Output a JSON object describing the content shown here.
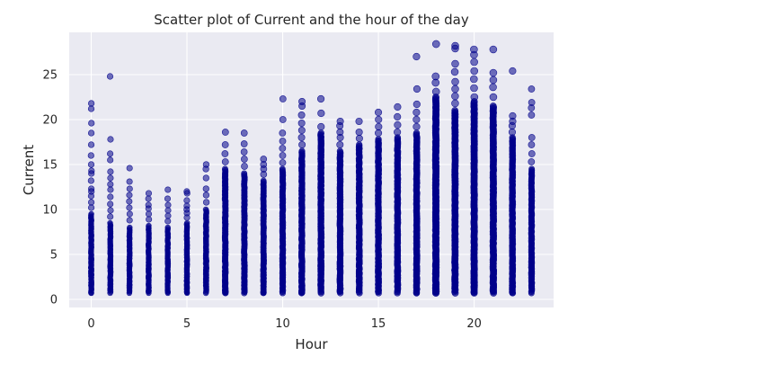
{
  "chart_data": {
    "type": "scatter",
    "title": "Scatter plot of Current and the hour of the day",
    "xlabel": "Hour",
    "ylabel": "Current",
    "xlim": [
      -1.15,
      24.15
    ],
    "ylim": [
      -0.9,
      29.7
    ],
    "xticks": [
      0,
      5,
      10,
      15,
      20
    ],
    "yticks": [
      0,
      5,
      10,
      15,
      20,
      25
    ],
    "grid": true,
    "legend": "none",
    "colors": {
      "point": "#00008b",
      "background": "#eaeaf2",
      "grid": "#ffffff",
      "text": "#262626"
    },
    "series": [
      {
        "name": "Current",
        "points": [
          {
            "hour": 0,
            "low": 0.7,
            "dense_max": 9.5,
            "outliers": [
              10.2,
              10.8,
              11.5,
              12.0,
              12.3,
              13.2,
              14.0,
              14.3,
              15.0,
              16.0,
              17.2,
              18.5,
              19.6,
              21.2,
              21.8
            ]
          },
          {
            "hour": 1,
            "low": 0.7,
            "dense_max": 8.5,
            "outliers": [
              9.2,
              9.9,
              10.6,
              11.4,
              12.2,
              12.8,
              13.5,
              14.2,
              15.5,
              16.2,
              17.8,
              24.8
            ]
          },
          {
            "hour": 2,
            "low": 0.7,
            "dense_max": 8.0,
            "outliers": [
              8.8,
              9.5,
              10.2,
              10.9,
              11.6,
              12.3,
              13.1,
              14.6
            ]
          },
          {
            "hour": 3,
            "low": 0.7,
            "dense_max": 8.2,
            "outliers": [
              8.9,
              9.5,
              10.1,
              10.5,
              11.2,
              11.8
            ]
          },
          {
            "hour": 4,
            "low": 0.7,
            "dense_max": 8.0,
            "outliers": [
              8.7,
              9.3,
              9.9,
              10.5,
              11.2,
              12.2
            ]
          },
          {
            "hour": 5,
            "low": 0.7,
            "dense_max": 8.5,
            "outliers": [
              9.1,
              9.6,
              10.0,
              10.4,
              11.0,
              11.8,
              12.0
            ]
          },
          {
            "hour": 6,
            "low": 0.7,
            "dense_max": 10.0,
            "outliers": [
              10.8,
              11.6,
              12.3,
              13.5,
              14.5,
              15.0
            ]
          },
          {
            "hour": 7,
            "low": 0.7,
            "dense_max": 14.5,
            "outliers": [
              15.3,
              16.2,
              17.2,
              18.6
            ]
          },
          {
            "hour": 8,
            "low": 0.7,
            "dense_max": 14.0,
            "outliers": [
              14.8,
              15.6,
              16.4,
              17.3,
              18.5
            ]
          },
          {
            "hour": 9,
            "low": 0.7,
            "dense_max": 13.2,
            "outliers": [
              13.9,
              14.5,
              15.0,
              15.6
            ]
          },
          {
            "hour": 10,
            "low": 0.7,
            "dense_max": 14.5,
            "outliers": [
              15.2,
              16.0,
              16.8,
              17.6,
              18.5,
              20.0,
              22.3
            ]
          },
          {
            "hour": 11,
            "low": 0.7,
            "dense_max": 16.5,
            "outliers": [
              17.2,
              18.0,
              18.8,
              19.6,
              20.5,
              21.5,
              22.0
            ]
          },
          {
            "hour": 12,
            "low": 0.7,
            "dense_max": 18.5,
            "outliers": [
              19.2,
              20.7,
              22.3
            ]
          },
          {
            "hour": 13,
            "low": 0.7,
            "dense_max": 16.5,
            "outliers": [
              17.2,
              18.0,
              18.6,
              19.3,
              19.8
            ]
          },
          {
            "hour": 14,
            "low": 0.7,
            "dense_max": 17.2,
            "outliers": [
              17.9,
              18.6,
              19.8
            ]
          },
          {
            "hour": 15,
            "low": 0.7,
            "dense_max": 17.8,
            "outliers": [
              18.5,
              19.2,
              20.0,
              20.8
            ]
          },
          {
            "hour": 16,
            "low": 0.7,
            "dense_max": 18.0,
            "outliers": [
              18.6,
              19.4,
              20.3,
              21.4
            ]
          },
          {
            "hour": 17,
            "low": 0.7,
            "dense_max": 18.5,
            "outliers": [
              19.2,
              20.0,
              20.8,
              21.7,
              23.4,
              27.0
            ]
          },
          {
            "hour": 18,
            "low": 0.7,
            "dense_max": 22.5,
            "outliers": [
              23.1,
              24.1,
              24.8,
              28.4
            ]
          },
          {
            "hour": 19,
            "low": 0.7,
            "dense_max": 21.0,
            "outliers": [
              21.8,
              22.6,
              23.4,
              24.2,
              25.3,
              26.2,
              27.9,
              28.2
            ]
          },
          {
            "hour": 20,
            "low": 0.7,
            "dense_max": 22.0,
            "outliers": [
              22.5,
              23.5,
              24.5,
              25.4,
              26.4,
              27.2,
              27.8
            ]
          },
          {
            "hour": 21,
            "low": 0.7,
            "dense_max": 21.5,
            "outliers": [
              22.5,
              23.6,
              24.4,
              25.2,
              27.8
            ]
          },
          {
            "hour": 22,
            "low": 0.7,
            "dense_max": 18.0,
            "outliers": [
              18.6,
              19.3,
              19.8,
              20.4,
              25.4
            ]
          },
          {
            "hour": 23,
            "low": 0.7,
            "dense_max": 14.5,
            "outliers": [
              15.3,
              16.2,
              17.2,
              18.0,
              20.5,
              21.3,
              21.9,
              23.4
            ]
          }
        ]
      }
    ]
  }
}
